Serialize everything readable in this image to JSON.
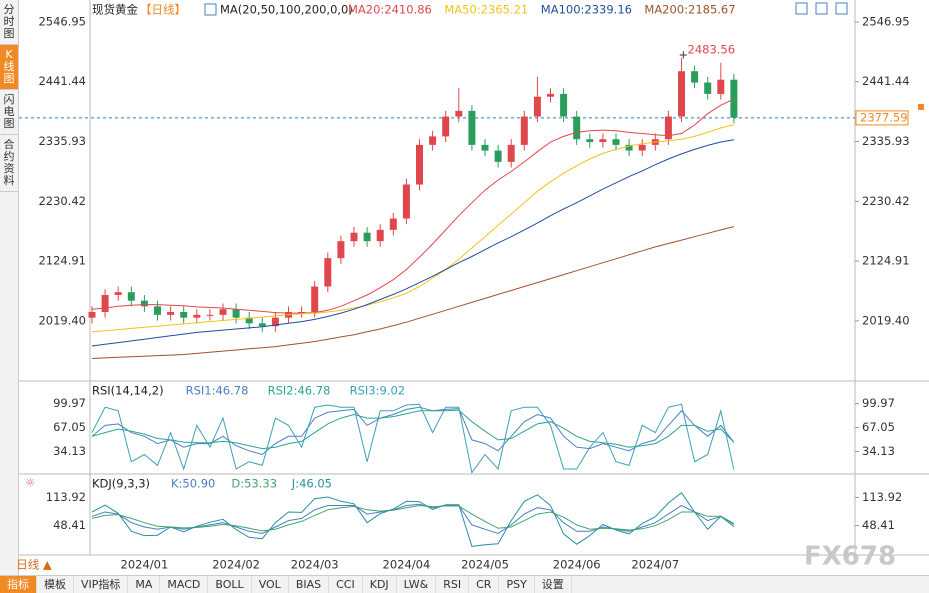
{
  "ui": {
    "side_tabs": [
      "分时图",
      "K线图",
      "闪电图",
      "合约资料"
    ],
    "title": "现货黄金",
    "period": "【日线】",
    "ma_params": "MA(20,50,100,200,0,0)",
    "timeframe": "日线 ▲",
    "toolbar": [
      "指标",
      "模板",
      "VIP指标",
      "MA",
      "MACD",
      "BOLL",
      "VOL",
      "BIAS",
      "CCI",
      "KDJ",
      "LW&",
      "RSI",
      "CR",
      "PSY",
      "设置"
    ],
    "watermark": "FX678"
  },
  "chart_data": [
    {
      "type": "candlestick",
      "ylim": [
        1915,
        2561
      ],
      "yticks": [
        2546.95,
        2441.44,
        2335.93,
        2230.42,
        2124.91,
        {
          "value": 2019.4,
          "label": "2019.40"
        }
      ],
      "categories": [
        null,
        null,
        null,
        null,
        "2024/01",
        null,
        null,
        null,
        null,
        null,
        null,
        "2024/02",
        null,
        null,
        null,
        null,
        null,
        "2024/03",
        null,
        null,
        null,
        null,
        null,
        null,
        "2024/04",
        null,
        null,
        null,
        null,
        null,
        "2024/05",
        null,
        null,
        null,
        null,
        null,
        null,
        "2024/06",
        null,
        null,
        null,
        null,
        null,
        "2024/07",
        null,
        null,
        null,
        null,
        null,
        null
      ],
      "open": [
        2025,
        2035,
        2065,
        2070,
        2055,
        2045,
        2030,
        2035,
        2025,
        2030,
        2030,
        2040,
        2025,
        2015,
        2010,
        2025,
        2035,
        2035,
        2080,
        2130,
        2160,
        2175,
        2160,
        2180,
        2200,
        2260,
        2330,
        2345,
        2380,
        2390,
        2330,
        2320,
        2300,
        2330,
        2380,
        2415,
        2420,
        2380,
        2340,
        2335,
        2340,
        2330,
        2320,
        2330,
        2340,
        2380,
        2460,
        2440,
        2420,
        2445
      ],
      "high": [
        2045,
        2075,
        2080,
        2080,
        2065,
        2055,
        2045,
        2045,
        2040,
        2040,
        2050,
        2050,
        2035,
        2025,
        2035,
        2045,
        2045,
        2090,
        2140,
        2170,
        2185,
        2185,
        2190,
        2210,
        2270,
        2340,
        2355,
        2390,
        2430,
        2400,
        2340,
        2330,
        2340,
        2390,
        2450,
        2430,
        2430,
        2390,
        2350,
        2350,
        2350,
        2340,
        2340,
        2350,
        2390,
        2483.56,
        2470,
        2450,
        2475,
        2455
      ],
      "low": [
        2015,
        2025,
        2055,
        2045,
        2035,
        2020,
        2020,
        2015,
        2015,
        2020,
        2020,
        2015,
        2005,
        2000,
        2000,
        2015,
        2025,
        2025,
        2070,
        2120,
        2150,
        2150,
        2150,
        2170,
        2190,
        2250,
        2320,
        2335,
        2370,
        2320,
        2310,
        2290,
        2290,
        2320,
        2370,
        2405,
        2370,
        2330,
        2325,
        2325,
        2320,
        2310,
        2310,
        2320,
        2330,
        2370,
        2430,
        2410,
        2410,
        2368
      ],
      "close": [
        2035,
        2065,
        2070,
        2055,
        2045,
        2030,
        2035,
        2025,
        2030,
        2030,
        2040,
        2025,
        2015,
        2010,
        2025,
        2035,
        2035,
        2080,
        2130,
        2160,
        2175,
        2160,
        2180,
        2200,
        2260,
        2330,
        2345,
        2380,
        2390,
        2330,
        2320,
        2300,
        2330,
        2380,
        2415,
        2420,
        2380,
        2340,
        2335,
        2340,
        2330,
        2320,
        2330,
        2340,
        2380,
        2460,
        2440,
        2420,
        2445,
        2378
      ],
      "up_color": "#e0474c",
      "down_color": "#2a9d5c",
      "current_price": 2377.59,
      "series": [
        {
          "name": "MA20:2410.86",
          "color": "#e0474c",
          "values": [
            2040,
            2042,
            2045,
            2047,
            2048,
            2048,
            2047,
            2046,
            2044,
            2043,
            2042,
            2040,
            2038,
            2036,
            2034,
            2033,
            2033,
            2034,
            2038,
            2045,
            2055,
            2065,
            2078,
            2092,
            2110,
            2132,
            2155,
            2180,
            2205,
            2228,
            2250,
            2268,
            2283,
            2300,
            2318,
            2335,
            2345,
            2352,
            2355,
            2356,
            2355,
            2352,
            2350,
            2348,
            2346,
            2350,
            2365,
            2385,
            2400,
            2410.86
          ]
        },
        {
          "name": "MA50:2365.21",
          "color": "#f0c419",
          "values": [
            2000,
            2002,
            2004,
            2006,
            2008,
            2010,
            2012,
            2014,
            2016,
            2018,
            2020,
            2022,
            2024,
            2026,
            2028,
            2030,
            2032,
            2033,
            2035,
            2038,
            2042,
            2047,
            2053,
            2060,
            2068,
            2080,
            2095,
            2110,
            2128,
            2148,
            2168,
            2188,
            2208,
            2228,
            2248,
            2265,
            2280,
            2293,
            2305,
            2315,
            2322,
            2328,
            2332,
            2335,
            2337,
            2340,
            2345,
            2352,
            2360,
            2365.21
          ]
        },
        {
          "name": "MA100:2339.16",
          "color": "#1f4e9c",
          "values": [
            1975,
            1978,
            1981,
            1984,
            1987,
            1990,
            1993,
            1996,
            1999,
            2001,
            2003,
            2005,
            2007,
            2009,
            2012,
            2015,
            2018,
            2022,
            2027,
            2033,
            2040,
            2048,
            2057,
            2066,
            2076,
            2087,
            2098,
            2110,
            2122,
            2133,
            2145,
            2157,
            2168,
            2180,
            2192,
            2205,
            2217,
            2228,
            2240,
            2252,
            2263,
            2274,
            2284,
            2295,
            2305,
            2314,
            2322,
            2329,
            2335,
            2339.16
          ]
        },
        {
          "name": "MA200:2185.67",
          "color": "#a0522d",
          "values": [
            1953,
            1954,
            1955,
            1956,
            1957,
            1958,
            1959,
            1960,
            1962,
            1964,
            1966,
            1968,
            1970,
            1972,
            1974,
            1977,
            1980,
            1983,
            1987,
            1991,
            1995,
            2000,
            2005,
            2011,
            2017,
            2024,
            2031,
            2038,
            2045,
            2052,
            2059,
            2066,
            2073,
            2080,
            2087,
            2094,
            2101,
            2108,
            2115,
            2122,
            2129,
            2136,
            2143,
            2150,
            2156,
            2162,
            2168,
            2174,
            2180,
            2185.67
          ]
        }
      ]
    },
    {
      "type": "line",
      "title": "RSI(14,14,2)",
      "ylim": [
        5.9,
        125.5
      ],
      "yticks": [
        99.97,
        67.05,
        34.13
      ],
      "series": [
        {
          "name": "RSI1:46.78",
          "color": "#4a7fc1",
          "values": [
            55,
            70,
            72,
            60,
            55,
            45,
            50,
            40,
            45,
            45,
            55,
            42,
            35,
            30,
            45,
            55,
            55,
            80,
            88,
            90,
            92,
            70,
            80,
            85,
            92,
            95,
            90,
            92,
            93,
            50,
            45,
            35,
            55,
            75,
            85,
            80,
            55,
            40,
            38,
            45,
            40,
            35,
            45,
            50,
            70,
            90,
            70,
            55,
            70,
            46.78
          ]
        },
        {
          "name": "RSI2:46.78",
          "color": "#2aa58f",
          "values": [
            55,
            60,
            65,
            62,
            58,
            52,
            50,
            47,
            46,
            46,
            48,
            46,
            42,
            38,
            40,
            45,
            48,
            60,
            72,
            80,
            85,
            80,
            80,
            82,
            86,
            90,
            90,
            90,
            91,
            75,
            62,
            50,
            52,
            62,
            72,
            75,
            66,
            55,
            48,
            46,
            44,
            40,
            42,
            45,
            55,
            70,
            70,
            62,
            65,
            46.78
          ]
        },
        {
          "name": "RSI3:9.02",
          "color": "#3aa0b8",
          "values": [
            60,
            95,
            90,
            20,
            30,
            15,
            60,
            10,
            70,
            40,
            80,
            10,
            20,
            15,
            80,
            70,
            40,
            95,
            98,
            95,
            95,
            20,
            90,
            90,
            98,
            99,
            60,
            95,
            95,
            5,
            30,
            10,
            90,
            95,
            95,
            70,
            10,
            10,
            40,
            60,
            20,
            15,
            70,
            60,
            95,
            99,
            20,
            30,
            90,
            9.02
          ]
        }
      ]
    },
    {
      "type": "line",
      "title": "KDJ(9,3,3)",
      "ylim": [
        3.2,
        159.1
      ],
      "yticks": [
        113.92,
        48.41
      ],
      "series": [
        {
          "name": "K:50.90",
          "color": "#4a7fc1",
          "values": [
            70,
            80,
            75,
            55,
            45,
            40,
            45,
            40,
            45,
            50,
            55,
            45,
            35,
            30,
            45,
            60,
            65,
            85,
            95,
            95,
            95,
            75,
            80,
            85,
            95,
            98,
            90,
            95,
            95,
            50,
            40,
            30,
            50,
            75,
            90,
            85,
            55,
            35,
            35,
            45,
            40,
            35,
            45,
            55,
            75,
            95,
            80,
            60,
            70,
            50.9
          ]
        },
        {
          "name": "D:53.33",
          "color": "#41a66b",
          "values": [
            65,
            72,
            74,
            65,
            55,
            47,
            45,
            43,
            44,
            47,
            51,
            48,
            42,
            36,
            40,
            50,
            58,
            72,
            85,
            90,
            93,
            85,
            82,
            84,
            90,
            95,
            92,
            94,
            94,
            75,
            58,
            42,
            45,
            60,
            75,
            80,
            68,
            50,
            40,
            42,
            41,
            38,
            41,
            48,
            62,
            80,
            80,
            70,
            70,
            53.33
          ]
        },
        {
          "name": "J:46.05",
          "color": "#2a8fa0",
          "values": [
            80,
            96,
            77,
            35,
            25,
            26,
            45,
            34,
            47,
            56,
            63,
            39,
            21,
            18,
            55,
            80,
            79,
            111,
            115,
            105,
            99,
            55,
            76,
            87,
            105,
            104,
            86,
            97,
            97,
            0,
            4,
            6,
            60,
            105,
            120,
            95,
            29,
            5,
            25,
            51,
            38,
            29,
            53,
            69,
            101,
            125,
            80,
            40,
            70,
            46.05
          ]
        }
      ]
    }
  ]
}
